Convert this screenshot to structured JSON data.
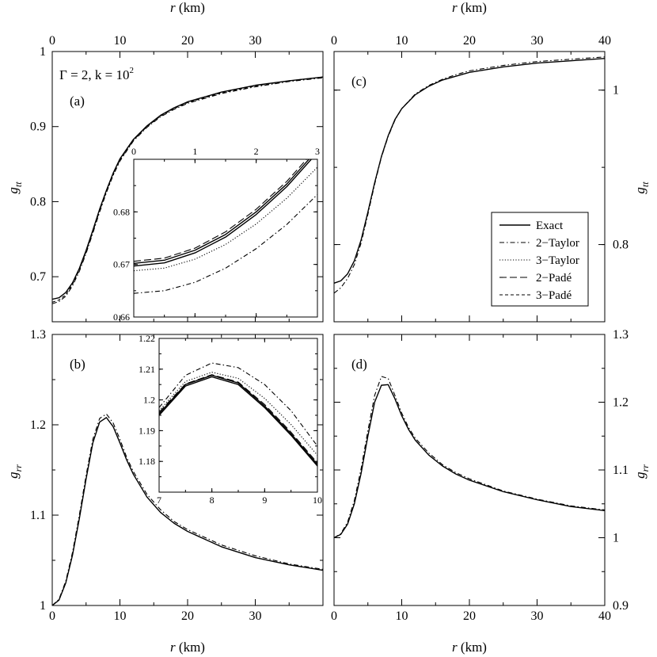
{
  "figure": {
    "annotation_main": "Γ = 2, k = 10",
    "annotation_sup": "2"
  },
  "legend": {
    "entries": [
      {
        "label": "Exact",
        "style": "solid"
      },
      {
        "label": "2−Taylor",
        "style": "dashdot"
      },
      {
        "label": "3−Taylor",
        "style": "dotted"
      },
      {
        "label": "2−Padé",
        "style": "longdash"
      },
      {
        "label": "3−Padé",
        "style": "shortdash"
      }
    ]
  },
  "chart_data": [
    {
      "id": "a",
      "type": "line",
      "panel_label": "(a)",
      "xlabel": "r (km)",
      "ylabel": "g_tt",
      "xlim": [
        0,
        40
      ],
      "ylim": [
        0.64,
        1.0
      ],
      "xticks": [
        0,
        10,
        20,
        30
      ],
      "yticks": [
        0.7,
        0.8,
        0.9,
        1
      ],
      "xtick_labels": [
        "0",
        "10",
        "20",
        "30"
      ],
      "ytick_labels": [
        "0.7",
        "0.8",
        "0.9",
        "1"
      ],
      "series": [
        {
          "style": "solid",
          "x": [
            0,
            1,
            2,
            3,
            4,
            5,
            6,
            7,
            8,
            9,
            10,
            12,
            14,
            16,
            18,
            20,
            25,
            30,
            35,
            40
          ],
          "y": [
            0.67,
            0.672,
            0.679,
            0.692,
            0.711,
            0.735,
            0.762,
            0.79,
            0.815,
            0.838,
            0.857,
            0.883,
            0.901,
            0.915,
            0.925,
            0.933,
            0.946,
            0.955,
            0.961,
            0.966
          ]
        },
        {
          "style": "dashdot",
          "x": [
            0,
            1,
            2,
            3,
            4,
            5,
            6,
            7,
            8,
            9,
            10,
            12,
            14,
            16,
            18,
            20,
            25,
            30,
            35,
            40
          ],
          "y": [
            0.664,
            0.667,
            0.674,
            0.688,
            0.707,
            0.731,
            0.758,
            0.786,
            0.812,
            0.835,
            0.854,
            0.881,
            0.899,
            0.913,
            0.923,
            0.931,
            0.944,
            0.953,
            0.96,
            0.965
          ]
        },
        {
          "style": "shortdash",
          "x": [
            0,
            1,
            2,
            3,
            4,
            5,
            6,
            7,
            8,
            9,
            10,
            12,
            14,
            16,
            18,
            20,
            25,
            30,
            35,
            40
          ],
          "y": [
            0.666,
            0.669,
            0.676,
            0.69,
            0.709,
            0.733,
            0.76,
            0.788,
            0.813,
            0.836,
            0.855,
            0.882,
            0.9,
            0.914,
            0.924,
            0.932,
            0.945,
            0.954,
            0.961,
            0.966
          ]
        }
      ]
    },
    {
      "id": "a-inset",
      "type": "line",
      "xlim": [
        0,
        3
      ],
      "ylim": [
        0.66,
        0.69
      ],
      "xticks": [
        0,
        1,
        2,
        3
      ],
      "yticks": [
        0.66,
        0.67,
        0.68
      ],
      "xtick_labels": [
        "0",
        "1",
        "2",
        "3"
      ],
      "ytick_labels": [
        "0.66",
        "0.67",
        "0.68"
      ],
      "series": [
        {
          "style": "solid",
          "x": [
            0,
            0.5,
            1,
            1.5,
            2,
            2.5,
            3
          ],
          "y": [
            0.6697,
            0.6703,
            0.6722,
            0.6752,
            0.6795,
            0.6848,
            0.6913
          ]
        },
        {
          "style": "solid",
          "x": [
            0,
            0.5,
            1,
            1.5,
            2,
            2.5,
            3
          ],
          "y": [
            0.6702,
            0.6708,
            0.6727,
            0.6757,
            0.68,
            0.6853,
            0.6918
          ]
        },
        {
          "style": "longdash",
          "x": [
            0,
            0.5,
            1,
            1.5,
            2,
            2.5,
            3
          ],
          "y": [
            0.6706,
            0.6712,
            0.6731,
            0.6762,
            0.6805,
            0.6858,
            0.6923
          ]
        },
        {
          "style": "dotted",
          "x": [
            0,
            0.5,
            1,
            1.5,
            2,
            2.5,
            3
          ],
          "y": [
            0.6688,
            0.6693,
            0.671,
            0.6738,
            0.6777,
            0.6826,
            0.6885
          ]
        },
        {
          "style": "dashdot",
          "x": [
            0,
            0.5,
            1,
            1.5,
            2,
            2.5,
            3
          ],
          "y": [
            0.6645,
            0.665,
            0.6666,
            0.6693,
            0.673,
            0.6776,
            0.6833
          ]
        }
      ]
    },
    {
      "id": "b",
      "type": "line",
      "panel_label": "(b)",
      "xlabel": "r (km)",
      "ylabel": "g_rr",
      "xlim": [
        0,
        40
      ],
      "ylim": [
        1.0,
        1.3
      ],
      "xticks": [
        0,
        10,
        20,
        30
      ],
      "yticks": [
        1,
        1.1,
        1.2,
        1.3
      ],
      "xtick_labels": [
        "0",
        "10",
        "20",
        "30"
      ],
      "ytick_labels": [
        "1",
        "1.1",
        "1.2",
        "1.3"
      ],
      "series": [
        {
          "style": "solid",
          "x": [
            0,
            1,
            2,
            3,
            4,
            5,
            6,
            7,
            8,
            9,
            10,
            11,
            12,
            14,
            16,
            18,
            20,
            25,
            30,
            35,
            40
          ],
          "y": [
            1.0,
            1.006,
            1.025,
            1.056,
            1.096,
            1.14,
            1.18,
            1.203,
            1.208,
            1.198,
            1.18,
            1.161,
            1.145,
            1.12,
            1.103,
            1.091,
            1.082,
            1.065,
            1.053,
            1.045,
            1.039
          ]
        },
        {
          "style": "dashdot",
          "x": [
            0,
            1,
            2,
            3,
            4,
            5,
            6,
            7,
            8,
            9,
            10,
            11,
            12,
            14,
            16,
            18,
            20,
            25,
            30,
            35,
            40
          ],
          "y": [
            1.0,
            1.007,
            1.027,
            1.059,
            1.1,
            1.144,
            1.184,
            1.207,
            1.212,
            1.202,
            1.184,
            1.164,
            1.148,
            1.123,
            1.106,
            1.093,
            1.084,
            1.067,
            1.055,
            1.046,
            1.04
          ]
        }
      ]
    },
    {
      "id": "b-inset",
      "type": "line",
      "xlim": [
        7,
        10
      ],
      "ylim": [
        1.17,
        1.22
      ],
      "xticks": [
        7,
        8,
        9,
        10
      ],
      "yticks": [
        1.18,
        1.19,
        1.2,
        1.21,
        1.22
      ],
      "xtick_labels": [
        "7",
        "8",
        "9",
        "10"
      ],
      "ytick_labels": [
        "1.18",
        "1.19",
        "1.2",
        "1.21",
        "1.22"
      ],
      "series": [
        {
          "style": "solid",
          "x": [
            7,
            7.5,
            8,
            8.5,
            9,
            9.5,
            10
          ],
          "y": [
            1.195,
            1.2045,
            1.2075,
            1.205,
            1.1975,
            1.1885,
            1.1785
          ]
        },
        {
          "style": "solid",
          "x": [
            7,
            7.5,
            8,
            8.5,
            9,
            9.5,
            10
          ],
          "y": [
            1.1955,
            1.205,
            1.208,
            1.2055,
            1.198,
            1.189,
            1.179
          ]
        },
        {
          "style": "longdash",
          "x": [
            7,
            7.5,
            8,
            8.5,
            9,
            9.5,
            10
          ],
          "y": [
            1.196,
            1.2052,
            1.2082,
            1.2058,
            1.1985,
            1.1895,
            1.1795
          ]
        },
        {
          "style": "dotted",
          "x": [
            7,
            7.5,
            8,
            8.5,
            9,
            9.5,
            10
          ],
          "y": [
            1.1965,
            1.206,
            1.209,
            1.207,
            1.2005,
            1.192,
            1.182
          ]
        },
        {
          "style": "dashdot",
          "x": [
            7,
            7.5,
            8,
            8.5,
            9,
            9.5,
            10
          ],
          "y": [
            1.1975,
            1.208,
            1.212,
            1.2105,
            1.205,
            1.1965,
            1.185
          ]
        }
      ]
    },
    {
      "id": "c",
      "type": "line",
      "panel_label": "(c)",
      "xlabel": "r (km)",
      "ylabel": "g_tt",
      "xlim": [
        0,
        40
      ],
      "ylim": [
        0.7,
        1.05
      ],
      "xticks": [
        0,
        10,
        20,
        30,
        40
      ],
      "yticks": [
        0.8,
        1
      ],
      "xtick_labels": [
        "0",
        "10",
        "20",
        "30",
        "40"
      ],
      "ytick_labels": [
        "0.8",
        "1"
      ],
      "series": [
        {
          "style": "solid",
          "x": [
            0,
            1,
            2,
            3,
            4,
            5,
            6,
            7,
            8,
            9,
            10,
            12,
            14,
            16,
            18,
            20,
            25,
            30,
            35,
            40
          ],
          "y": [
            0.75,
            0.753,
            0.762,
            0.779,
            0.806,
            0.842,
            0.88,
            0.914,
            0.941,
            0.962,
            0.976,
            0.994,
            1.005,
            1.013,
            1.018,
            1.023,
            1.03,
            1.035,
            1.038,
            1.041
          ]
        },
        {
          "style": "dashdot",
          "x": [
            0,
            1,
            2,
            3,
            4,
            5,
            6,
            7,
            8,
            9,
            10,
            12,
            14,
            16,
            18,
            20,
            25,
            30,
            35,
            40
          ],
          "y": [
            0.737,
            0.744,
            0.756,
            0.774,
            0.802,
            0.839,
            0.878,
            0.913,
            0.94,
            0.961,
            0.976,
            0.995,
            1.006,
            1.014,
            1.02,
            1.025,
            1.032,
            1.037,
            1.04,
            1.043
          ]
        }
      ]
    },
    {
      "id": "d",
      "type": "line",
      "panel_label": "(d)",
      "xlabel": "r (km)",
      "ylabel": "g_rr",
      "xlim": [
        0,
        40
      ],
      "ylim": [
        0.9,
        1.3
      ],
      "xticks": [
        0,
        10,
        20,
        30,
        40
      ],
      "yticks": [
        0.9,
        1,
        1.1,
        1.2,
        1.3
      ],
      "xtick_labels": [
        "0",
        "10",
        "20",
        "30",
        "40"
      ],
      "ytick_labels": [
        "0.9",
        "1",
        "1.1",
        "1.2",
        "1.3"
      ],
      "series": [
        {
          "style": "solid",
          "x": [
            0,
            1,
            2,
            3,
            4,
            5,
            6,
            7,
            8,
            9,
            10,
            11,
            12,
            14,
            16,
            18,
            20,
            25,
            30,
            35,
            40
          ],
          "y": [
            1.0,
            1.005,
            1.02,
            1.05,
            1.095,
            1.15,
            1.2,
            1.225,
            1.226,
            1.205,
            1.18,
            1.16,
            1.144,
            1.122,
            1.106,
            1.094,
            1.085,
            1.068,
            1.056,
            1.046,
            1.04
          ]
        },
        {
          "style": "dashdot",
          "x": [
            0,
            1,
            2,
            3,
            4,
            5,
            6,
            7,
            8,
            9,
            10,
            11,
            12,
            14,
            16,
            18,
            20,
            25,
            30,
            35,
            40
          ],
          "y": [
            1.0,
            1.006,
            1.023,
            1.055,
            1.102,
            1.158,
            1.21,
            1.238,
            1.235,
            1.21,
            1.184,
            1.163,
            1.147,
            1.125,
            1.108,
            1.096,
            1.087,
            1.069,
            1.057,
            1.047,
            1.041
          ]
        }
      ]
    }
  ]
}
